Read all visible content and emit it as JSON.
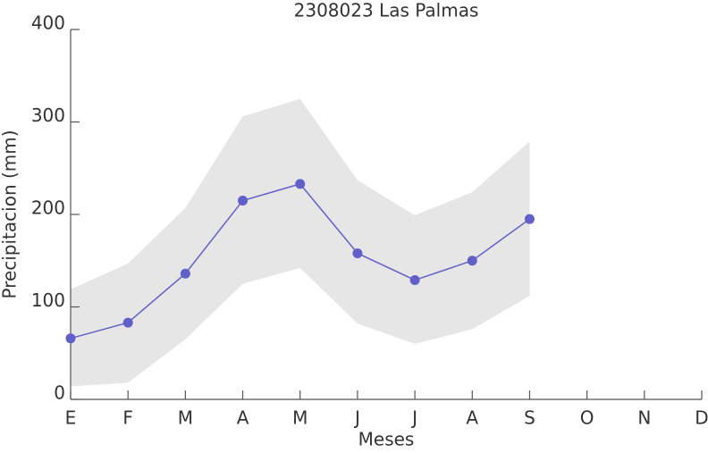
{
  "chart_data": {
    "type": "line",
    "title": "2308023 Las Palmas",
    "xlabel": "Meses",
    "ylabel": "Precipitacion (mm)",
    "categories": [
      "E",
      "F",
      "M",
      "A",
      "M",
      "J",
      "J",
      "A",
      "S",
      "O",
      "N",
      "D"
    ],
    "series": [
      {
        "color": "#6060c8",
        "values": [
          66,
          83,
          136,
          215,
          233,
          158,
          129,
          150,
          195,
          null,
          null,
          null
        ]
      }
    ],
    "band": {
      "color": "#e6e6e6",
      "upper": [
        119,
        147,
        207,
        306,
        325,
        237,
        199,
        224,
        279,
        null,
        null,
        null
      ],
      "lower": [
        14,
        18,
        65,
        125,
        142,
        82,
        60,
        76,
        112,
        null,
        null,
        null
      ]
    },
    "ylim": [
      0,
      400
    ],
    "yticks": [
      0,
      100,
      200,
      300,
      400
    ],
    "grid": false
  }
}
